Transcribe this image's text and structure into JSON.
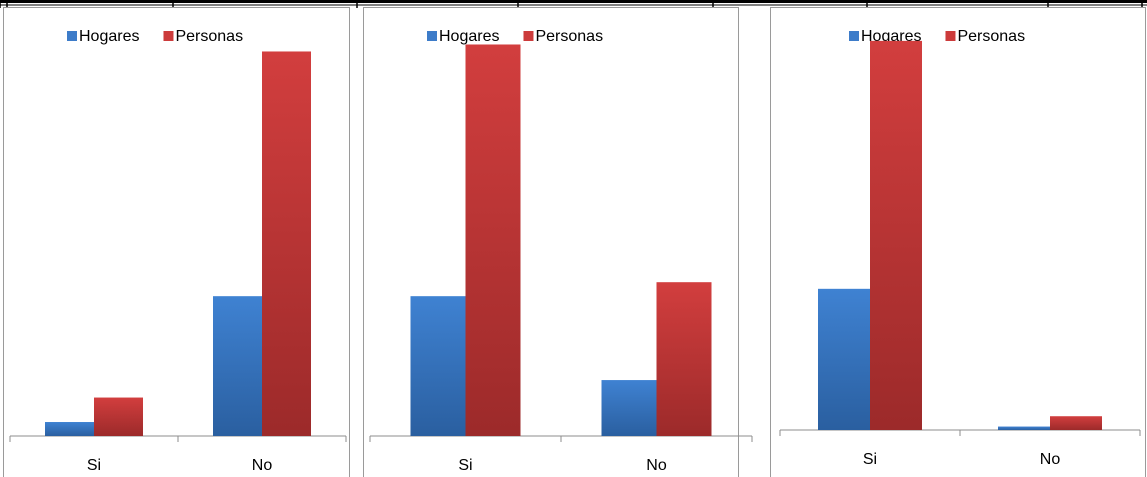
{
  "chart_data": [
    {
      "type": "bar",
      "categories": [
        "Si",
        "No"
      ],
      "series": [
        {
          "name": "Hogares",
          "values": [
            4,
            40
          ]
        },
        {
          "name": "Personas",
          "values": [
            11,
            110
          ]
        }
      ],
      "ylim": [
        0,
        115
      ],
      "legend": "top",
      "grid": false
    },
    {
      "type": "bar",
      "categories": [
        "Si",
        "No"
      ],
      "series": [
        {
          "name": "Hogares",
          "values": [
            40,
            16
          ]
        },
        {
          "name": "Personas",
          "values": [
            112,
            44
          ]
        }
      ],
      "ylim": [
        0,
        115
      ],
      "legend": "top",
      "grid": false
    },
    {
      "type": "bar",
      "categories": [
        "Si",
        "No"
      ],
      "series": [
        {
          "name": "Hogares",
          "values": [
            41,
            1
          ]
        },
        {
          "name": "Personas",
          "values": [
            113,
            4
          ]
        }
      ],
      "ylim": [
        0,
        115
      ],
      "legend": "top",
      "grid": false
    }
  ],
  "colors": {
    "Hogares": "#3d7cc9",
    "Personas": "#cc3b3b"
  }
}
